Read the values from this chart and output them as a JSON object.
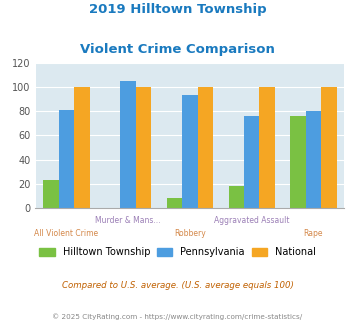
{
  "title_line1": "2019 Hilltown Township",
  "title_line2": "Violent Crime Comparison",
  "cat_top": [
    "",
    "Murder & Mans...",
    "",
    "Aggravated Assault",
    ""
  ],
  "cat_bottom": [
    "All Violent Crime",
    "",
    "Robbery",
    "",
    "Rape"
  ],
  "hilltown": [
    23,
    0,
    8,
    18,
    76
  ],
  "pennsylvania": [
    81,
    105,
    93,
    76,
    80
  ],
  "national": [
    100,
    100,
    100,
    100,
    100
  ],
  "hilltown_color": "#7ac143",
  "pennsylvania_color": "#4d9de0",
  "national_color": "#f5a623",
  "bg_color": "#dce9f0",
  "ylim": [
    0,
    120
  ],
  "yticks": [
    0,
    20,
    40,
    60,
    80,
    100,
    120
  ],
  "title_color": "#1a7abf",
  "cat_top_color": "#9b7fb6",
  "cat_bottom_color": "#d4884a",
  "footnote1": "Compared to U.S. average. (U.S. average equals 100)",
  "footnote2": "© 2025 CityRating.com - https://www.cityrating.com/crime-statistics/",
  "footnote1_color": "#c06000",
  "footnote2_color": "#888888",
  "legend_labels": [
    "Hilltown Township",
    "Pennsylvania",
    "National"
  ],
  "bar_width": 0.25
}
